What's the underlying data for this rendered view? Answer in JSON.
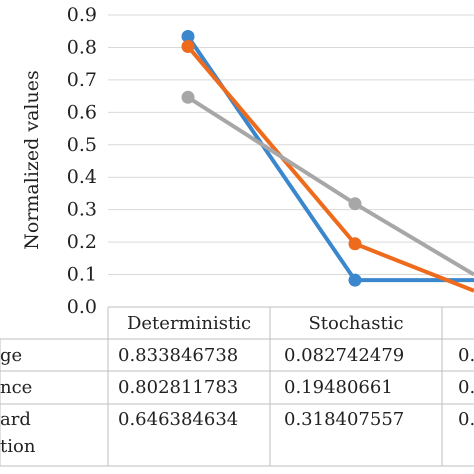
{
  "chart_data": {
    "type": "line",
    "ylabel": "Normalized values",
    "ylim": [
      0,
      0.9
    ],
    "yticks": [
      "0.0",
      "0.1",
      "0.2",
      "0.3",
      "0.4",
      "0.5",
      "0.6",
      "0.7",
      "0.8",
      "0.9"
    ],
    "grid": true,
    "categories": [
      "Deterministic",
      "Stochastic",
      ""
    ],
    "series": [
      {
        "name": "ge",
        "color": "#3a87cd",
        "values": [
          0.833846738,
          0.082742479,
          0.082742479
        ]
      },
      {
        "name": "nce",
        "color": "#ee6b1d",
        "values": [
          0.802811783,
          0.19480661,
          0.05
        ]
      },
      {
        "name": "ard\ntion",
        "color": "#a7a7a7",
        "values": [
          0.646384634,
          0.318407557,
          0.1
        ]
      }
    ],
    "table_rows": [
      {
        "label": "ge",
        "cells": [
          "0.833846738",
          "0.082742479",
          "0."
        ]
      },
      {
        "label": "nce",
        "cells": [
          "0.802811783",
          "0.19480661",
          "0."
        ]
      },
      {
        "label_lines": [
          "ard",
          "tion"
        ],
        "cells": [
          "0.646384634",
          "0.318407557",
          "0."
        ]
      }
    ]
  }
}
